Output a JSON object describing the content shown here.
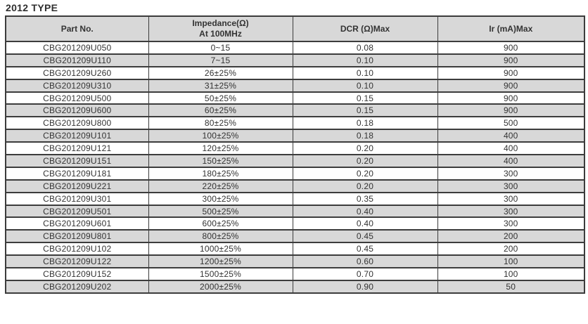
{
  "page": {
    "title": "2012 TYPE"
  },
  "colors": {
    "header_bg": "#d8d8d8",
    "stripe_bg": "#d8d8d8",
    "row_bg": "#ffffff",
    "border": "#3c3c3c",
    "text": "#333333"
  },
  "table": {
    "columns": {
      "part_no": "Part No.",
      "impedance_line1": "Impedance(Ω)",
      "impedance_line2": "At 100MHz",
      "dcr": "DCR (Ω)Max",
      "ir": "Ir (mA)Max"
    },
    "rows": [
      {
        "part_no": "CBG201209U050",
        "impedance": "0~15",
        "dcr": "0.08",
        "ir": "900"
      },
      {
        "part_no": "CBG201209U110",
        "impedance": "7~15",
        "dcr": "0.10",
        "ir": "900"
      },
      {
        "part_no": "CBG201209U260",
        "impedance": "26±25%",
        "dcr": "0.10",
        "ir": "900"
      },
      {
        "part_no": "CBG201209U310",
        "impedance": "31±25%",
        "dcr": "0.10",
        "ir": "900"
      },
      {
        "part_no": "CBG201209U500",
        "impedance": "50±25%",
        "dcr": "0.15",
        "ir": "900"
      },
      {
        "part_no": "CBG201209U600",
        "impedance": "60±25%",
        "dcr": "0.15",
        "ir": "900"
      },
      {
        "part_no": "CBG201209U800",
        "impedance": "80±25%",
        "dcr": "0.18",
        "ir": "500"
      },
      {
        "part_no": "CBG201209U101",
        "impedance": "100±25%",
        "dcr": "0.18",
        "ir": "400"
      },
      {
        "part_no": "CBG201209U121",
        "impedance": "120±25%",
        "dcr": "0.20",
        "ir": "400"
      },
      {
        "part_no": "CBG201209U151",
        "impedance": "150±25%",
        "dcr": "0.20",
        "ir": "400"
      },
      {
        "part_no": "CBG201209U181",
        "impedance": "180±25%",
        "dcr": "0.20",
        "ir": "300"
      },
      {
        "part_no": "CBG201209U221",
        "impedance": "220±25%",
        "dcr": "0.20",
        "ir": "300"
      },
      {
        "part_no": "CBG201209U301",
        "impedance": "300±25%",
        "dcr": "0.35",
        "ir": "300"
      },
      {
        "part_no": "CBG201209U501",
        "impedance": "500±25%",
        "dcr": "0.40",
        "ir": "300"
      },
      {
        "part_no": "CBG201209U601",
        "impedance": "600±25%",
        "dcr": "0.40",
        "ir": "300"
      },
      {
        "part_no": "CBG201209U801",
        "impedance": "800±25%",
        "dcr": "0.45",
        "ir": "200"
      },
      {
        "part_no": "CBG201209U102",
        "impedance": "1000±25%",
        "dcr": "0.45",
        "ir": "200"
      },
      {
        "part_no": "CBG201209U122",
        "impedance": "1200±25%",
        "dcr": "0.60",
        "ir": "100"
      },
      {
        "part_no": "CBG201209U152",
        "impedance": "1500±25%",
        "dcr": "0.70",
        "ir": "100"
      },
      {
        "part_no": "CBG201209U202",
        "impedance": "2000±25%",
        "dcr": "0.90",
        "ir": "50"
      }
    ]
  }
}
